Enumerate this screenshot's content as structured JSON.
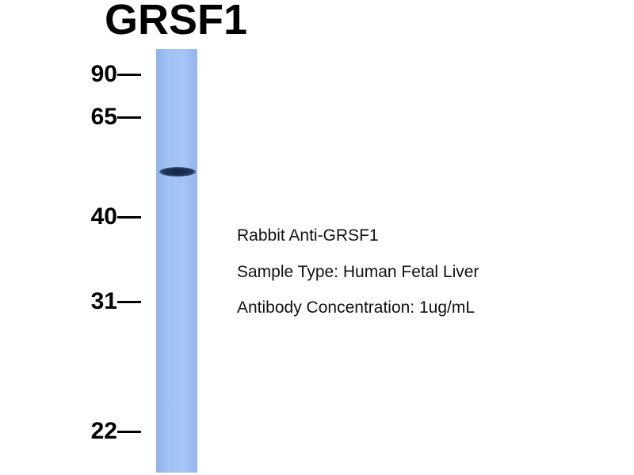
{
  "title": "GRSF1",
  "markers": [
    "90",
    "65",
    "40",
    "31",
    "22"
  ],
  "info": {
    "antibody": "Rabbit Anti-GRSF1",
    "sample": "Sample Type: Human Fetal Liver",
    "concentration": "Antibody Concentration: 1ug/mL"
  },
  "colors": {
    "lane": "#a2c2f4",
    "band": "#1a2e4c"
  }
}
